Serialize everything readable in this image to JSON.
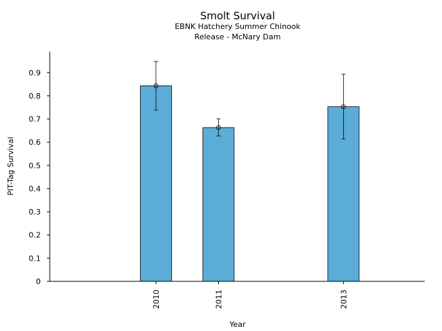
{
  "chart_data": {
    "type": "bar",
    "title": "Smolt Survival",
    "subtitle_lines": [
      "EBNK Hatchery Summer Chinook",
      "Release - McNary Dam"
    ],
    "xlabel": "Year",
    "ylabel": "PIT-Tag Survival",
    "x_range": [
      2008.3,
      2014.3
    ],
    "ylim": [
      0,
      0.99
    ],
    "yticks": [
      0,
      0.1,
      0.2,
      0.3,
      0.4,
      0.5,
      0.6,
      0.7,
      0.8,
      0.9
    ],
    "ytick_labels": [
      "0",
      "0.1",
      "0.2",
      "0.3",
      "0.4",
      "0.5",
      "0.6",
      "0.7",
      "0.8",
      "0.9"
    ],
    "categories": [
      "2010",
      "2011",
      "2013"
    ],
    "x": [
      2010,
      2011,
      2013
    ],
    "values": [
      0.843,
      0.663,
      0.753
    ],
    "error_low": [
      0.738,
      0.627,
      0.614
    ],
    "error_high": [
      0.948,
      0.701,
      0.893
    ],
    "bar_color": "#5BACD6",
    "grid": false,
    "legend": "none"
  }
}
